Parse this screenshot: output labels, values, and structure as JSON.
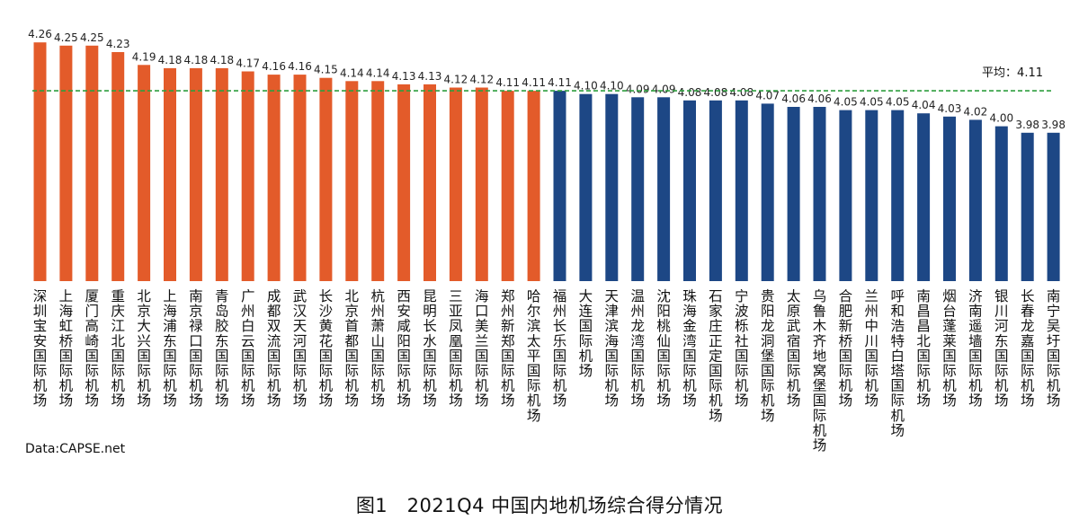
{
  "chart_data": {
    "type": "bar",
    "title": "",
    "xlabel": "",
    "ylabel": "",
    "categories": [
      "深圳宝安国际机场",
      "上海虹桥国际机场",
      "厦门高崎国际机场",
      "重庆江北国际机场",
      "北京大兴国际机场",
      "上海浦东国际机场",
      "南京禄口国际机场",
      "青岛胶东国际机场",
      "广州白云国际机场",
      "成都双流国际机场",
      "武汉天河国际机场",
      "长沙黄花国际机场",
      "北京首都国际机场",
      "杭州萧山国际机场",
      "西安咸阳国际机场",
      "昆明长水国际机场",
      "三亚凤凰国际机场",
      "海口美兰国际机场",
      "郑州新郑国际机场",
      "哈尔滨太平国际机场",
      "福州长乐国际机场",
      "大连国际机场",
      "天津滨海国际机场",
      "温州龙湾国际机场",
      "沈阳桃仙国际机场",
      "珠海金湾国际机场",
      "石家庄正定国际机场",
      "宁波栎社国际机场",
      "贵阳龙洞堡国际机场",
      "太原武宿国际机场",
      "乌鲁木齐地窝堡国际机场",
      "合肥新桥国际机场",
      "兰州中川国际机场",
      "呼和浩特白塔国际机场",
      "南昌昌北国际机场",
      "烟台蓬莱国际机场",
      "济南遥墙国际机场",
      "银川河东国际机场",
      "长春龙嘉国际机场",
      "南宁吴圩国际机场"
    ],
    "values": [
      4.26,
      4.25,
      4.25,
      4.23,
      4.19,
      4.18,
      4.18,
      4.18,
      4.17,
      4.16,
      4.16,
      4.15,
      4.14,
      4.14,
      4.13,
      4.13,
      4.12,
      4.12,
      4.11,
      4.11,
      4.11,
      4.1,
      4.1,
      4.09,
      4.09,
      4.08,
      4.08,
      4.08,
      4.07,
      4.06,
      4.06,
      4.05,
      4.05,
      4.05,
      4.04,
      4.03,
      4.02,
      4.0,
      3.98,
      3.98
    ],
    "value_labels": [
      "4.26",
      "4.25",
      "4.25",
      "4.23",
      "4.19",
      "4.18",
      "4.18",
      "4.18",
      "4.17",
      "4.16",
      "4.16",
      "4.15",
      "4.14",
      "4.14",
      "4.13",
      "4.13",
      "4.12",
      "4.12",
      "4.11",
      "4.11",
      "4.11",
      "4.10",
      "4.10",
      "4.09",
      "4.09",
      "4.08",
      "4.08",
      "4.08",
      "4.07",
      "4.06",
      "4.06",
      "4.05",
      "4.05",
      "4.05",
      "4.04",
      "4.03",
      "4.02",
      "4.00",
      "3.98",
      "3.98"
    ],
    "above_average_count": 20,
    "ylim": [
      3.52,
      4.28
    ],
    "average": {
      "value": 4.11,
      "label": "平均：4.11"
    },
    "grid": false,
    "legend": "none",
    "colors": {
      "above": "#E35B2A",
      "below": "#1D4785",
      "average_line": "#2E9E3E"
    }
  },
  "source": "Data:CAPSE.net",
  "caption": "图1　2021Q4 中国内地机场综合得分情况"
}
